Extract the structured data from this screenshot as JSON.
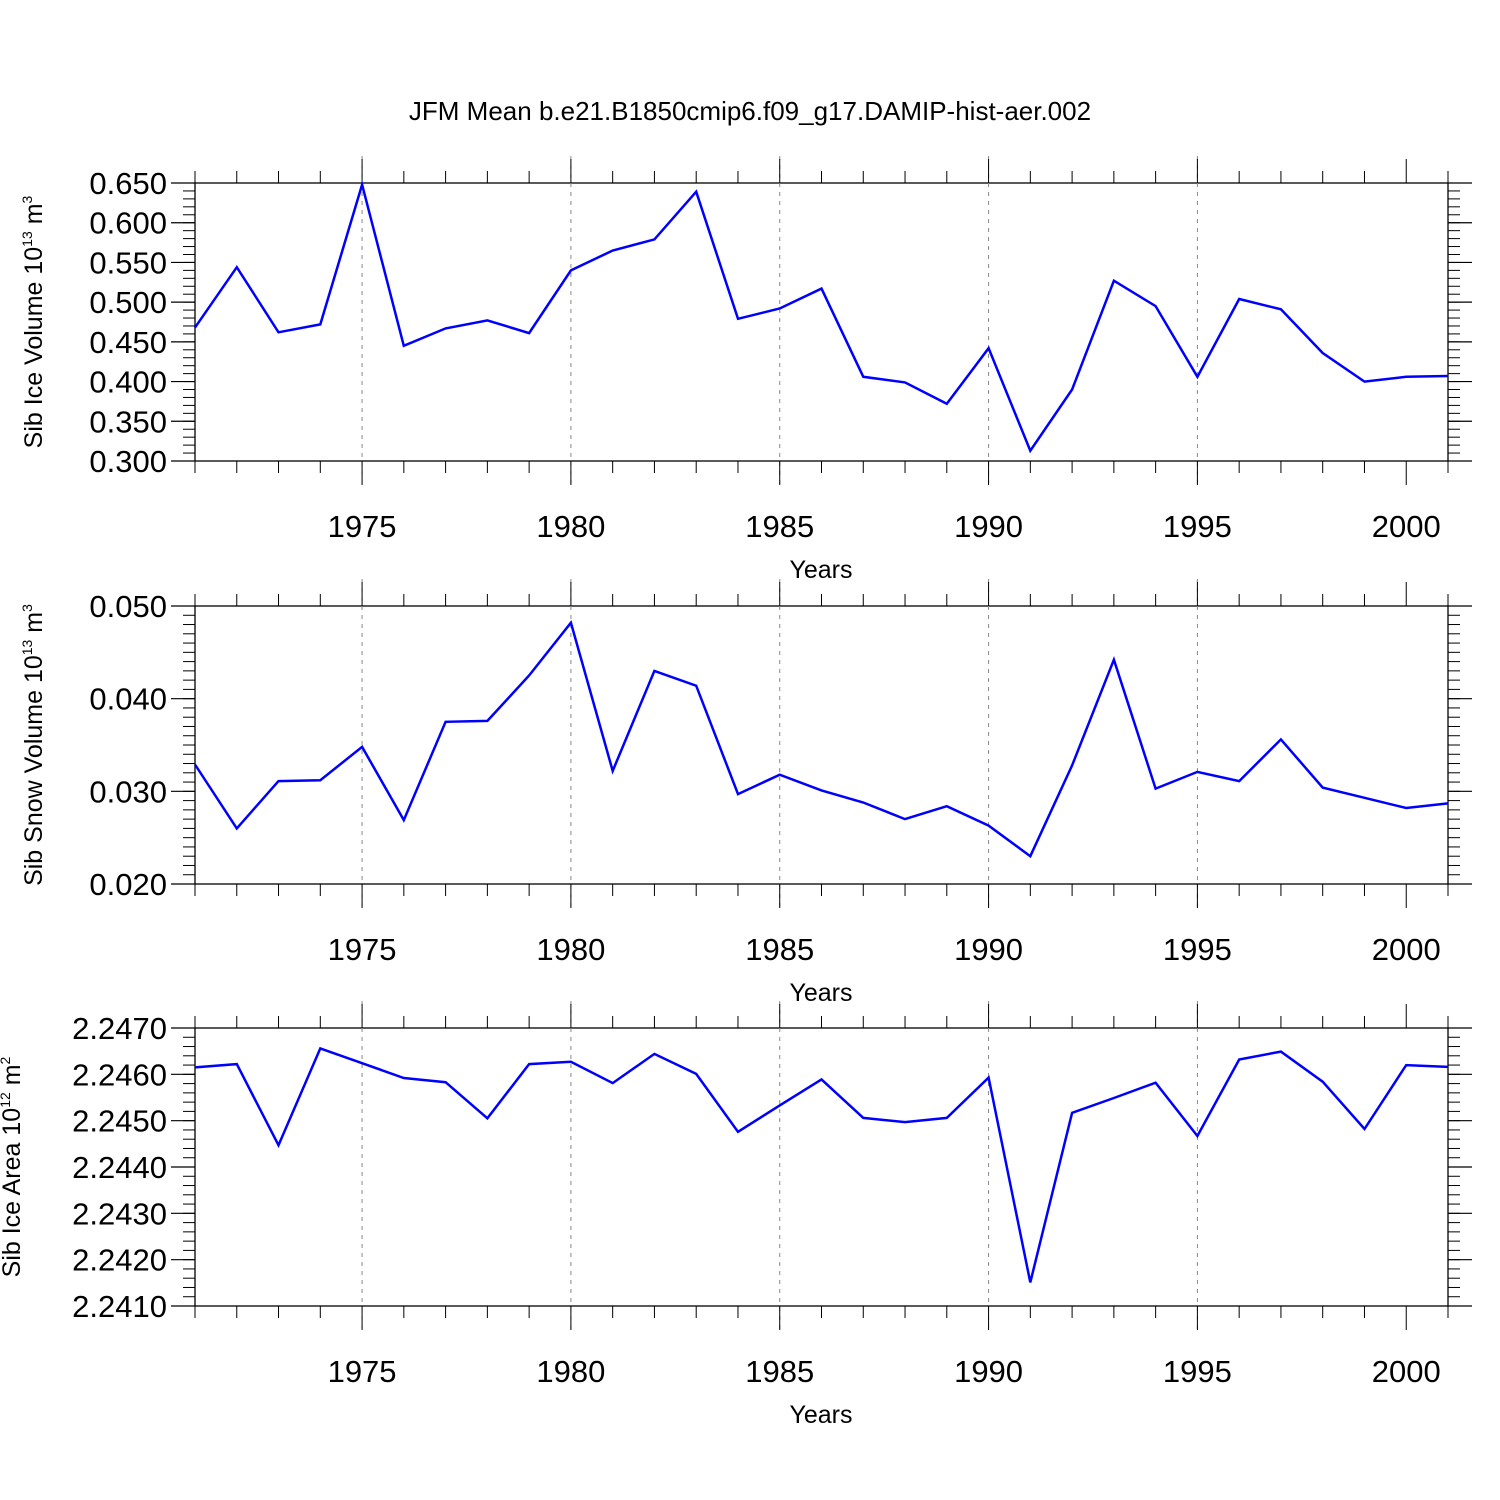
{
  "figure": {
    "title": "JFM Mean b.e21.B1850cmip6.f09_g17.DAMIP-hist-aer.002",
    "line_color": "#0000ff",
    "grid_color": "#888888"
  },
  "chart_data": [
    {
      "type": "line",
      "title": "",
      "xlabel": "Years",
      "ylabel": {
        "prefix": "Sib Ice Volume 10",
        "exp": "13",
        "unit": " m",
        "unit_exp": "3"
      },
      "xlim": [
        1971,
        2001
      ],
      "ylim": [
        0.3,
        0.65
      ],
      "x_ticks": [
        1975,
        1980,
        1985,
        1990,
        1995,
        2000
      ],
      "x_tick_labels": [
        "1975",
        "1980",
        "1985",
        "1990",
        "1995",
        "2000"
      ],
      "y_ticks": [
        0.3,
        0.35,
        0.4,
        0.45,
        0.5,
        0.55,
        0.6,
        0.65
      ],
      "y_tick_labels": [
        "0.300",
        "0.350",
        "0.400",
        "0.450",
        "0.500",
        "0.550",
        "0.600",
        "0.650"
      ],
      "y_minor_step": 0.01,
      "vgrid": [
        1975,
        1980,
        1985,
        1990,
        1995
      ],
      "series": [
        {
          "name": "Sib Ice Volume",
          "x": [
            1971,
            1972,
            1973,
            1974,
            1975,
            1976,
            1977,
            1978,
            1979,
            1980,
            1981,
            1982,
            1983,
            1984,
            1985,
            1986,
            1987,
            1988,
            1989,
            1990,
            1991,
            1992,
            1993,
            1994,
            1995,
            1996,
            1997,
            1998,
            1999,
            2000,
            2001
          ],
          "values": [
            0.468,
            0.544,
            0.462,
            0.472,
            0.648,
            0.445,
            0.467,
            0.477,
            0.461,
            0.54,
            0.565,
            0.579,
            0.639,
            0.479,
            0.492,
            0.517,
            0.406,
            0.399,
            0.372,
            0.442,
            0.313,
            0.39,
            0.527,
            0.495,
            0.406,
            0.504,
            0.491,
            0.436,
            0.4,
            0.406,
            0.407
          ]
        }
      ]
    },
    {
      "type": "line",
      "title": "",
      "xlabel": "Years",
      "ylabel": {
        "prefix": "Sib Snow Volume 10",
        "exp": "13",
        "unit": " m",
        "unit_exp": "3"
      },
      "xlim": [
        1971,
        2001
      ],
      "ylim": [
        0.02,
        0.05
      ],
      "x_ticks": [
        1975,
        1980,
        1985,
        1990,
        1995,
        2000
      ],
      "x_tick_labels": [
        "1975",
        "1980",
        "1985",
        "1990",
        "1995",
        "2000"
      ],
      "y_ticks": [
        0.02,
        0.03,
        0.04,
        0.05
      ],
      "y_tick_labels": [
        "0.020",
        "0.030",
        "0.040",
        "0.050"
      ],
      "y_minor_step": 0.001,
      "vgrid": [
        1975,
        1980,
        1985,
        1990,
        1995
      ],
      "series": [
        {
          "name": "Sib Snow Volume",
          "x": [
            1971,
            1972,
            1973,
            1974,
            1975,
            1976,
            1977,
            1978,
            1979,
            1980,
            1981,
            1982,
            1983,
            1984,
            1985,
            1986,
            1987,
            1988,
            1989,
            1990,
            1991,
            1992,
            1993,
            1994,
            1995,
            1996,
            1997,
            1998,
            1999,
            2000,
            2001
          ],
          "values": [
            0.0329,
            0.026,
            0.0311,
            0.0312,
            0.0348,
            0.0269,
            0.0375,
            0.0376,
            0.0425,
            0.0482,
            0.0322,
            0.043,
            0.0414,
            0.0297,
            0.0318,
            0.0301,
            0.0288,
            0.027,
            0.0284,
            0.0263,
            0.023,
            0.0328,
            0.0442,
            0.0303,
            0.0321,
            0.0311,
            0.0356,
            0.0304,
            0.0293,
            0.0282,
            0.0287
          ]
        }
      ]
    },
    {
      "type": "line",
      "title": "",
      "xlabel": "Years",
      "ylabel": {
        "prefix": "Sib Ice Area 10",
        "exp": "12",
        "unit": " m",
        "unit_exp": "2"
      },
      "xlim": [
        1971,
        2001
      ],
      "ylim": [
        2.241,
        2.247
      ],
      "x_ticks": [
        1975,
        1980,
        1985,
        1990,
        1995,
        2000
      ],
      "x_tick_labels": [
        "1975",
        "1980",
        "1985",
        "1990",
        "1995",
        "2000"
      ],
      "y_ticks": [
        2.241,
        2.242,
        2.243,
        2.244,
        2.245,
        2.246,
        2.247
      ],
      "y_tick_labels": [
        "2.2410",
        "2.2420",
        "2.2430",
        "2.2440",
        "2.2450",
        "2.2460",
        "2.2470"
      ],
      "y_minor_step": 0.0002,
      "vgrid": [
        1975,
        1980,
        1985,
        1990,
        1995
      ],
      "series": [
        {
          "name": "Sib Ice Area",
          "x": [
            1971,
            1972,
            1973,
            1974,
            1975,
            1976,
            1977,
            1978,
            1979,
            1980,
            1981,
            1982,
            1983,
            1984,
            1985,
            1986,
            1987,
            1988,
            1989,
            1990,
            1991,
            1992,
            1993,
            1994,
            1995,
            1996,
            1997,
            1998,
            1999,
            2000,
            2001
          ],
          "values": [
            2.24615,
            2.24622,
            2.24447,
            2.24656,
            2.24624,
            2.24592,
            2.24583,
            2.24505,
            2.24622,
            2.24627,
            2.24581,
            2.24644,
            2.24601,
            2.24476,
            2.24533,
            2.24589,
            2.24506,
            2.24497,
            2.24506,
            2.24593,
            2.24151,
            2.24517,
            2.24549,
            2.24582,
            2.24467,
            2.24632,
            2.24649,
            2.24584,
            2.24482,
            2.2462,
            2.24616
          ]
        }
      ]
    }
  ]
}
